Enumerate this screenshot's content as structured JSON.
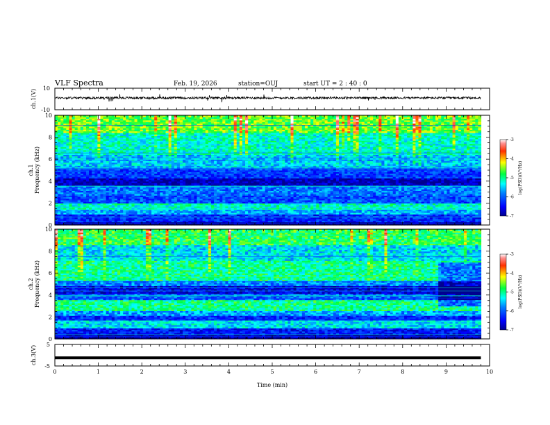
{
  "header": {
    "title": "VLF Spectra",
    "date": "Feb. 19, 2026",
    "station": "station=OUJ",
    "start_ut": "start  UT =  2 : 40 : 0"
  },
  "chart_data": [
    {
      "type": "line",
      "panel": "ch1-waveform",
      "ylabel": "ch.1(V)",
      "ylim": [
        -10,
        10
      ],
      "y_tick_labels": [
        "10",
        "-10"
      ],
      "xlim": [
        0,
        10
      ],
      "baseline_value": 1.0,
      "noise_amplitude": 1.0
    },
    {
      "type": "heatmap",
      "panel": "ch1-spectrogram",
      "ylabel_channel": "ch.1",
      "ylabel_quantity": "Frequency (kHz)",
      "ylim": [
        0,
        10
      ],
      "y_ticks": [
        0,
        2,
        4,
        6,
        8,
        10
      ],
      "y_tick_labels": [
        "0",
        "2",
        "4",
        "6",
        "8",
        "10"
      ],
      "xlim": [
        0,
        9.8
      ],
      "colorbar": {
        "label": "log(PSD)(V²/Hz)",
        "range": [
          -7,
          -3
        ],
        "ticks": [
          -7,
          -6,
          -5,
          -4,
          -3
        ],
        "tick_labels": [
          "-7",
          "-6",
          "-5",
          "-4",
          "-3"
        ]
      },
      "bands": [
        {
          "f": [
            0.0,
            0.3
          ],
          "level": -7.0
        },
        {
          "f": [
            0.3,
            1.0
          ],
          "level": -6.3
        },
        {
          "f": [
            1.0,
            1.5
          ],
          "level": -5.6
        },
        {
          "f": [
            1.5,
            2.0
          ],
          "level": -5.2
        },
        {
          "f": [
            2.0,
            2.7
          ],
          "level": -6.1
        },
        {
          "f": [
            2.7,
            3.6
          ],
          "level": -5.9
        },
        {
          "f": [
            3.6,
            4.3
          ],
          "level": -6.8
        },
        {
          "f": [
            4.3,
            5.2
          ],
          "level": -6.2
        },
        {
          "f": [
            5.2,
            6.5
          ],
          "level": -5.5
        },
        {
          "f": [
            6.5,
            8.5
          ],
          "level": -5.2
        },
        {
          "f": [
            8.5,
            10.0
          ],
          "level": -4.6
        }
      ]
    },
    {
      "type": "heatmap",
      "panel": "ch2-spectrogram",
      "ylabel_channel": "ch.2",
      "ylabel_quantity": "Frequency (kHz)",
      "ylim": [
        0,
        10
      ],
      "y_ticks": [
        0,
        2,
        4,
        6,
        8,
        10
      ],
      "y_tick_labels": [
        "0",
        "2",
        "4",
        "6",
        "8",
        "10"
      ],
      "xlim": [
        0,
        9.8
      ],
      "colorbar": {
        "label": "log(PSD)(V²/Hz)",
        "range": [
          -7,
          -3
        ],
        "ticks": [
          -7,
          -6,
          -5,
          -4,
          -3
        ],
        "tick_labels": [
          "-7",
          "-6",
          "-5",
          "-4",
          "-3"
        ]
      },
      "bands": [
        {
          "f": [
            0.0,
            0.5
          ],
          "level": -6.9
        },
        {
          "f": [
            0.5,
            1.0
          ],
          "level": -6.4
        },
        {
          "f": [
            1.0,
            1.7
          ],
          "level": -5.4
        },
        {
          "f": [
            1.7,
            2.1
          ],
          "level": -6.3
        },
        {
          "f": [
            2.1,
            2.6
          ],
          "level": -5.7
        },
        {
          "f": [
            2.6,
            3.6
          ],
          "level": -5.0
        },
        {
          "f": [
            3.6,
            4.1
          ],
          "level": -6.0
        },
        {
          "f": [
            4.1,
            4.8
          ],
          "level": -6.6
        },
        {
          "f": [
            4.8,
            5.3
          ],
          "level": -5.8
        },
        {
          "f": [
            5.3,
            7.2
          ],
          "level": -5.0
        },
        {
          "f": [
            7.2,
            8.6
          ],
          "level": -5.4
        },
        {
          "f": [
            8.6,
            10.0
          ],
          "level": -4.8
        }
      ],
      "change_time_min": 8.8
    },
    {
      "type": "line",
      "panel": "ch3-waveform",
      "ylabel": "ch.3(V)",
      "ylim": [
        -5,
        5
      ],
      "y_tick_labels": [
        "5",
        "-5"
      ],
      "xlim": [
        0,
        10
      ],
      "baseline_value": -1.2,
      "xlabel": "Time  (min)",
      "x_ticks": [
        0,
        1,
        2,
        3,
        4,
        5,
        6,
        7,
        8,
        9,
        10
      ],
      "x_tick_labels": [
        "0",
        "1",
        "2",
        "3",
        "4",
        "5",
        "6",
        "7",
        "8",
        "9",
        "10"
      ]
    }
  ]
}
